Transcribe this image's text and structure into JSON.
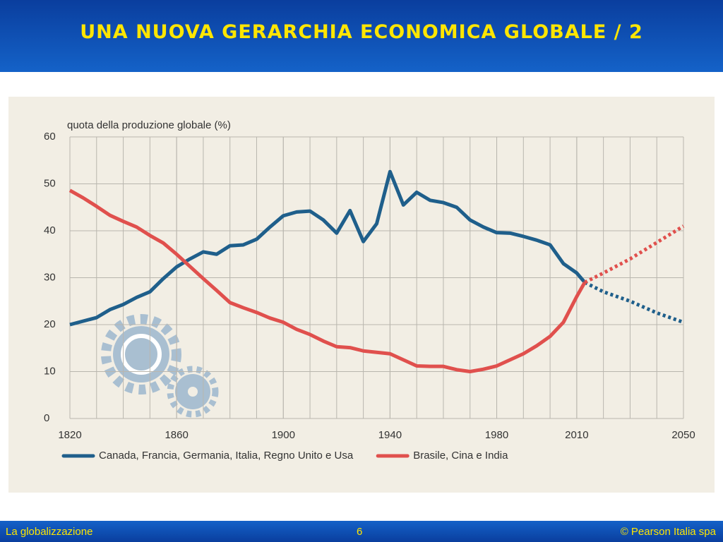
{
  "header": {
    "title": "UNA NUOVA GERARCHIA ECONOMICA GLOBALE / 2"
  },
  "chart_data": {
    "type": "line",
    "y_label": "quota della produzione globale (%)",
    "xlim": [
      1820,
      2050
    ],
    "xticks": [
      1820,
      1860,
      1900,
      1940,
      1980,
      2010,
      2050
    ],
    "x_grid_step": 10,
    "ylim": [
      0,
      60
    ],
    "yticks": [
      0,
      10,
      20,
      30,
      40,
      50,
      60
    ],
    "grid": true,
    "series": [
      {
        "name": "Canada, Francia, Germania, Italia, Regno Unito e Usa",
        "color": "#1f5f8b",
        "style": "solid",
        "x": [
          1820,
          1830,
          1835,
          1840,
          1845,
          1850,
          1855,
          1860,
          1865,
          1870,
          1875,
          1880,
          1885,
          1890,
          1895,
          1900,
          1905,
          1910,
          1915,
          1920,
          1925,
          1930,
          1935,
          1940,
          1945,
          1950,
          1955,
          1960,
          1965,
          1970,
          1975,
          1980,
          1985,
          1990,
          1995,
          2000,
          2005,
          2010,
          2013
        ],
        "values": [
          20,
          21.5,
          23.2,
          24.3,
          25.8,
          27,
          29.8,
          32.3,
          34,
          35.5,
          35,
          36.8,
          37,
          38.2,
          40.8,
          43.2,
          44,
          44.2,
          42.3,
          39.5,
          44.3,
          37.7,
          41.5,
          52.6,
          45.5,
          48.2,
          46.5,
          46,
          45,
          42.3,
          40.8,
          39.6,
          39.5,
          38.8,
          38,
          37,
          33,
          31,
          29
        ]
      },
      {
        "color": "#1f5f8b",
        "style": "dotted",
        "x": [
          2013,
          2020,
          2030,
          2040,
          2050
        ],
        "values": [
          29,
          27,
          25,
          22.5,
          20.5
        ]
      },
      {
        "name": "Brasile, Cina e India",
        "color": "#e0504d",
        "style": "solid",
        "x": [
          1820,
          1825,
          1830,
          1835,
          1840,
          1845,
          1850,
          1855,
          1860,
          1865,
          1870,
          1875,
          1880,
          1885,
          1890,
          1895,
          1900,
          1905,
          1910,
          1915,
          1920,
          1925,
          1930,
          1935,
          1940,
          1945,
          1950,
          1955,
          1960,
          1965,
          1970,
          1975,
          1980,
          1985,
          1990,
          1995,
          2000,
          2005,
          2010,
          2013
        ],
        "values": [
          48.6,
          47,
          45.2,
          43.3,
          42,
          40.8,
          39,
          37.4,
          35,
          32.4,
          29.8,
          27.3,
          24.7,
          23.6,
          22.6,
          21.4,
          20.5,
          19,
          17.9,
          16.5,
          15.3,
          15.1,
          14.4,
          14.1,
          13.8,
          12.5,
          11.2,
          11.1,
          11.1,
          10.4,
          10,
          10.5,
          11.2,
          12.5,
          13.8,
          15.5,
          17.5,
          20.5,
          26,
          29
        ]
      },
      {
        "color": "#e0504d",
        "style": "dotted",
        "x": [
          2013,
          2020,
          2030,
          2040,
          2050
        ],
        "values": [
          29,
          31,
          34,
          37.5,
          41
        ]
      }
    ]
  },
  "footer": {
    "left": "La globalizzazione",
    "page": "6",
    "right": "© Pearson Italia spa"
  }
}
